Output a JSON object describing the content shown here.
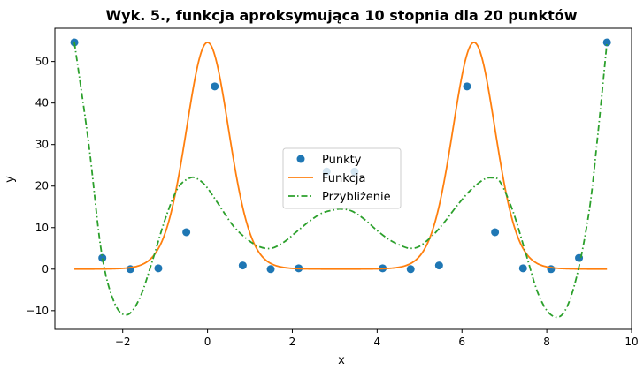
{
  "chart_data": {
    "type": "line",
    "title": "Wyk. 5., funkcja aproksymująca 10 stopnia dla 20 punktów",
    "xlabel": "x",
    "ylabel": "y",
    "xlim": [
      -3.6,
      10.0
    ],
    "ylim": [
      -14.5,
      58.0
    ],
    "xticks": [
      -2,
      0,
      2,
      4,
      6,
      8,
      10
    ],
    "yticks": [
      -10,
      0,
      10,
      20,
      30,
      40,
      50
    ],
    "grid": false,
    "legend_position": "center",
    "series": [
      {
        "name": "Punkty",
        "kind": "scatter",
        "color": "#1f77b4",
        "x": [
          -3.14,
          -2.48,
          -1.82,
          -1.16,
          -0.5,
          0.17,
          0.83,
          1.49,
          2.15,
          2.81,
          3.47,
          4.13,
          4.79,
          5.46,
          6.12,
          6.78,
          7.44,
          8.1,
          8.76,
          9.42
        ],
        "y": [
          54.6,
          2.7,
          0.0,
          0.2,
          8.9,
          44.0,
          0.9,
          0.0,
          0.2,
          23.5,
          23.5,
          0.2,
          0.0,
          0.9,
          44.0,
          8.9,
          0.2,
          0.0,
          2.7,
          54.6
        ]
      },
      {
        "name": "Funkcja",
        "kind": "line",
        "color": "#ff7f0e",
        "formula": "exp(4*cos(x))",
        "x_range": [
          -3.14,
          9.42
        ]
      },
      {
        "name": "Przybliżenie",
        "kind": "dashdot",
        "color": "#2ca02c",
        "x": [
          -3.14,
          -2.8,
          -2.5,
          -2.2,
          -1.9,
          -1.6,
          -1.3,
          -1.0,
          -0.7,
          -0.4,
          -0.2,
          0.0,
          0.3,
          0.6,
          0.9,
          1.2,
          1.5,
          1.8,
          2.1,
          2.4,
          2.7,
          3.0,
          3.14,
          3.4,
          3.7,
          4.0,
          4.3,
          4.6,
          4.79,
          5.0,
          5.3,
          5.6,
          5.9,
          6.2,
          6.5,
          6.7,
          6.9,
          7.2,
          7.5,
          7.8,
          8.1,
          8.4,
          8.7,
          9.0,
          9.2,
          9.42
        ],
        "y": [
          54.6,
          30.0,
          4.0,
          -8.0,
          -11.0,
          -7.0,
          2.0,
          12.0,
          19.5,
          22.0,
          21.5,
          19.5,
          15.0,
          10.5,
          7.5,
          5.5,
          5.0,
          6.5,
          9.0,
          11.5,
          13.5,
          14.3,
          14.5,
          14.0,
          12.0,
          9.3,
          7.0,
          5.5,
          5.0,
          5.5,
          8.0,
          11.5,
          15.5,
          19.0,
          21.5,
          22.0,
          21.0,
          14.0,
          4.0,
          -6.0,
          -11.0,
          -10.5,
          -2.0,
          14.0,
          32.0,
          54.6
        ]
      }
    ]
  }
}
